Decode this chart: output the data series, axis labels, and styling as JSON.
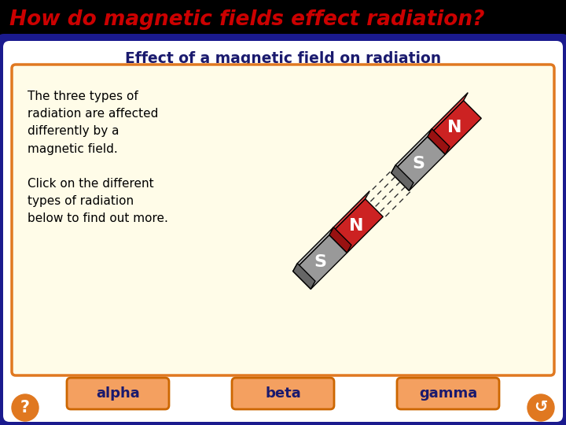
{
  "title_text": "How do magnetic fields effect radiation?",
  "title_color": "#cc0000",
  "title_bg": "#000000",
  "subtitle": "Effect of a magnetic field on radiation",
  "subtitle_color": "#1a1a6e",
  "outer_bg": "#1a1a8e",
  "inner_bg": "#fffce8",
  "inner_border": "#e07820",
  "body_text": "The three types of\nradiation are affected\ndifferently by a\nmagnetic field.\n\nClick on the different\ntypes of radiation\nbelow to find out more.",
  "body_text_color": "#000000",
  "button_labels": [
    "alpha",
    "beta",
    "gamma"
  ],
  "button_bg": "#f4a060",
  "button_border": "#cc6600",
  "button_text_color": "#1a1a6e",
  "magnet_red": "#cc2222",
  "magnet_red_light": "#dd4444",
  "magnet_red_dark": "#991111",
  "magnet_gray": "#999999",
  "magnet_gray_light": "#bbbbbb",
  "magnet_gray_dark": "#666666",
  "magnet_label_color": "#ffffff",
  "dashed_line_color": "#333333",
  "white": "#ffffff"
}
